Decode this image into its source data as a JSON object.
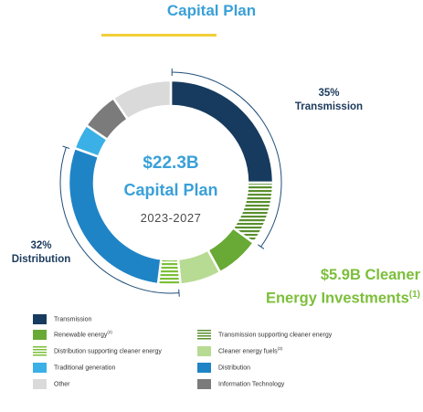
{
  "header": {
    "title": "Capital Plan"
  },
  "center": {
    "amount": "$22.3B",
    "label": "Capital Plan",
    "years": "2023-2027"
  },
  "callouts": {
    "transmission": {
      "pct": "35%",
      "name": "Transmission"
    },
    "distribution": {
      "pct": "32%",
      "name": "Distribution"
    }
  },
  "clean": {
    "line1": "$5.9B Cleaner",
    "line2": "Energy Investments",
    "note": "(1)"
  },
  "colors": {
    "transmission": "#173b5e",
    "transmission_clean": "#5a8f2e",
    "renewable": "#69a935",
    "distribution_clean": "#7cbf3a",
    "clean_fuels": "#b7db93",
    "distribution": "#1f84c6",
    "traditional": "#3ab0e6",
    "info_tech": "#7b7b7b",
    "other": "#dadada"
  },
  "chart_data": {
    "type": "pie",
    "title": "Capital Plan",
    "total": "$22.3B",
    "period": "2023-2027",
    "slices": [
      {
        "name": "Transmission",
        "value": 25.0,
        "color": "#173b5e",
        "pattern": "solid"
      },
      {
        "name": "Transmission supporting cleaner energy",
        "value": 10.0,
        "color": "#5a8f2e",
        "pattern": "stripes"
      },
      {
        "name": "Renewable energy",
        "value": 7.0,
        "color": "#69a935",
        "pattern": "solid"
      },
      {
        "name": "Cleaner energy fuels",
        "value": 6.5,
        "color": "#b7db93",
        "pattern": "solid"
      },
      {
        "name": "Distribution supporting cleaner energy",
        "value": 3.5,
        "color": "#7cbf3a",
        "pattern": "stripes"
      },
      {
        "name": "Distribution",
        "value": 28.5,
        "color": "#1f84c6",
        "pattern": "solid"
      },
      {
        "name": "Traditional generation",
        "value": 4.0,
        "color": "#3ab0e6",
        "pattern": "solid"
      },
      {
        "name": "Information Technology",
        "value": 6.0,
        "color": "#7b7b7b",
        "pattern": "solid"
      },
      {
        "name": "Other",
        "value": 9.5,
        "color": "#dadada",
        "pattern": "solid"
      }
    ],
    "labels": {
      "transmission": "35%",
      "distribution": "32%",
      "cleaner_energy": "$5.9B"
    }
  },
  "legend": [
    {
      "label": "Transmission",
      "note": "",
      "color": "#173b5e",
      "pattern": "solid"
    },
    {
      "label": "Transmission supporting cleaner energy",
      "note": "",
      "color": "#5a8f2e",
      "pattern": "stripes"
    },
    {
      "label": "Renewable energy",
      "note": "(2)",
      "color": "#69a935",
      "pattern": "solid"
    },
    {
      "label": "Cleaner energy fuels",
      "note": "(3)",
      "color": "#b7db93",
      "pattern": "solid"
    },
    {
      "label": "Distribution supporting cleaner energy",
      "note": "",
      "color": "#7cbf3a",
      "pattern": "stripes"
    },
    {
      "label": "Distribution",
      "note": "",
      "color": "#1f84c6",
      "pattern": "solid"
    },
    {
      "label": "Traditional generation",
      "note": "",
      "color": "#3ab0e6",
      "pattern": "solid"
    },
    {
      "label": "Information Technology",
      "note": "",
      "color": "#7b7b7b",
      "pattern": "solid"
    },
    {
      "label": "Other",
      "note": "",
      "color": "#dadada",
      "pattern": "solid"
    }
  ]
}
